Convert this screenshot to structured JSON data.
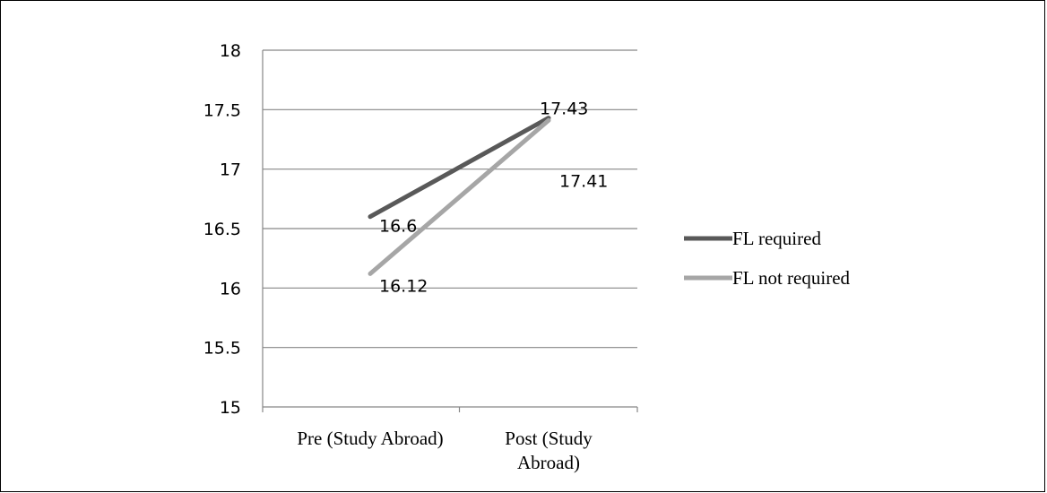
{
  "chart_data": {
    "type": "line",
    "categories": [
      "Pre (Study Abroad)",
      "Post (Study Abroad)"
    ],
    "category_lines": [
      [
        "Pre (Study Abroad)"
      ],
      [
        "Post (Study",
        "Abroad)"
      ]
    ],
    "series": [
      {
        "name": "FL required",
        "values": [
          16.6,
          17.43
        ],
        "labels": [
          "16.6",
          "17.43"
        ],
        "color": "#595959"
      },
      {
        "name": "FL not required",
        "values": [
          16.12,
          17.41
        ],
        "labels": [
          "16.12",
          "17.41"
        ],
        "color": "#a6a6a6"
      }
    ],
    "y_ticks": [
      15,
      15.5,
      16,
      16.5,
      17,
      17.5,
      18
    ],
    "y_tick_labels": [
      "15",
      "15.5",
      "16",
      "16.5",
      "17",
      "17.5",
      "18"
    ],
    "ylim": [
      15,
      18
    ],
    "grid": true,
    "legend": "right",
    "gridline_color": "#878787"
  }
}
